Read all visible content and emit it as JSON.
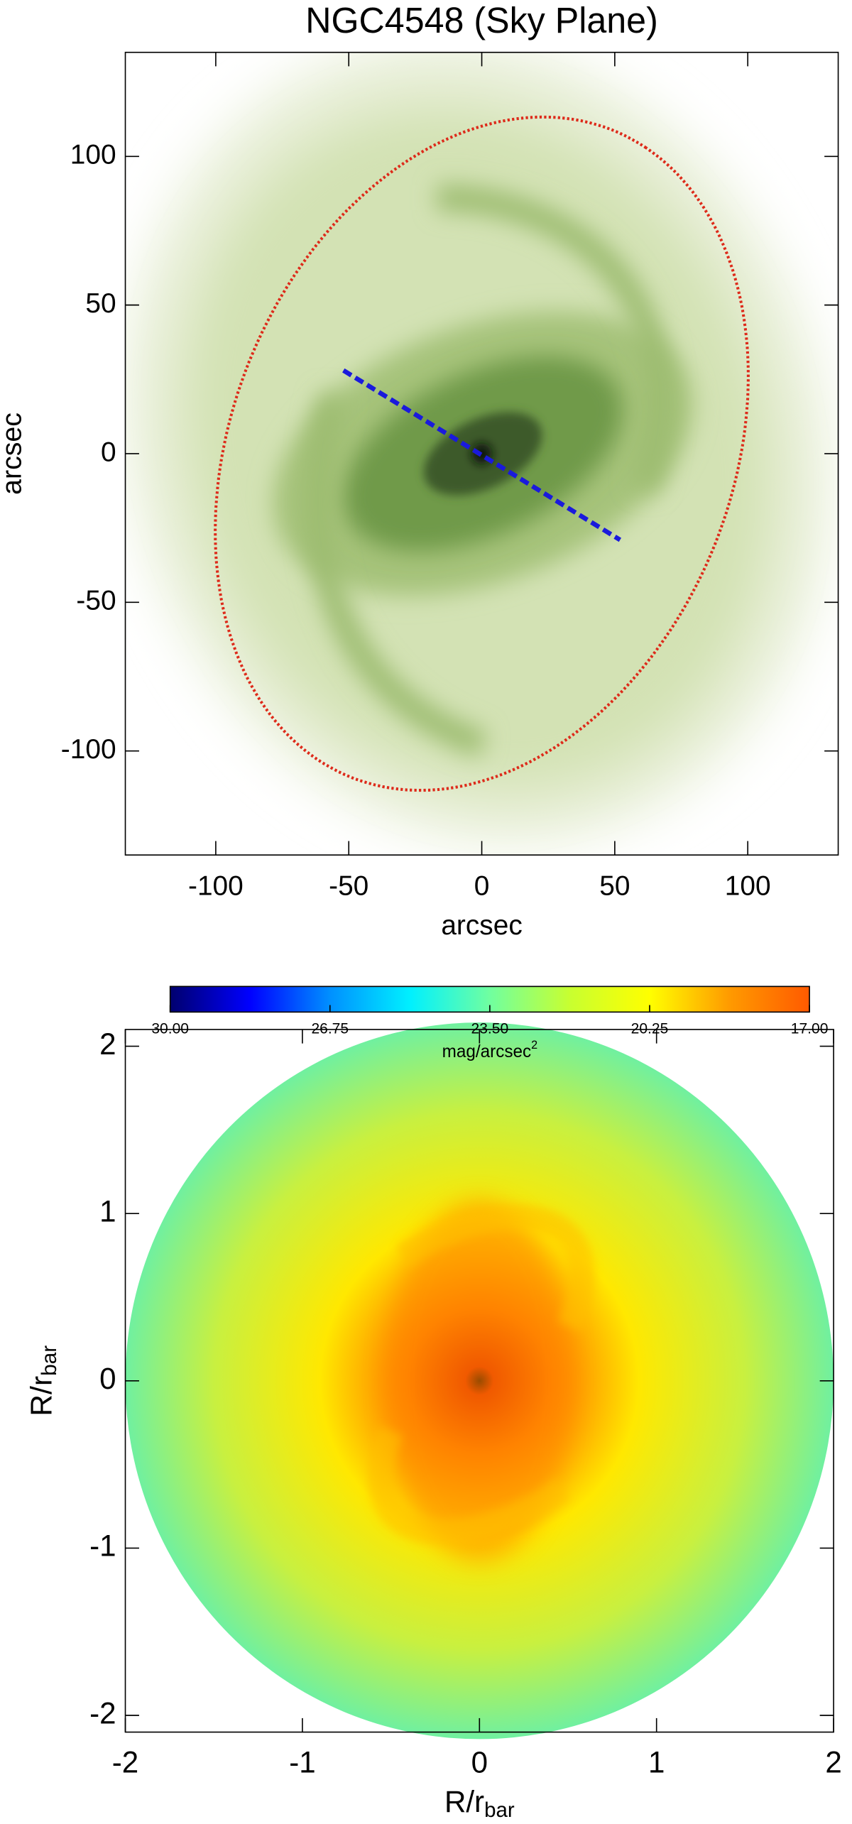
{
  "chart_data": [
    {
      "type": "image",
      "title": "NGC4548 (Sky Plane)",
      "xlabel": "arcsec",
      "ylabel": "arcsec",
      "xlim": [
        -134,
        134
      ],
      "ylim": [
        -135,
        135
      ],
      "xticks": [
        -100,
        -50,
        0,
        50,
        100
      ],
      "yticks": [
        -100,
        -50,
        0,
        50,
        100
      ],
      "ellipse": {
        "a": 120,
        "b": 92,
        "angle": 59,
        "color": "#dd2a1a"
      },
      "bar_line": {
        "x": [
          -52,
          52
        ],
        "y": [
          28,
          -29
        ],
        "color": "#1a1adc"
      }
    },
    {
      "type": "disk",
      "xlabel": "R/r",
      "xlabel_sub": "bar",
      "ylabel": "R/r",
      "ylabel_sub": "bar",
      "xlim": [
        -2,
        2
      ],
      "ylim": [
        -2.1,
        2.1
      ],
      "xticks": [
        -2,
        -1,
        0,
        1,
        2
      ],
      "yticks": [
        -2,
        -1,
        0,
        1,
        2
      ],
      "colorbar": {
        "label": "mag/arcsec",
        "label_sup": "2",
        "lim": [
          30,
          17
        ],
        "ticks": [
          {
            "value": 30,
            "label": "30.00"
          },
          {
            "value": 26.75,
            "label": "26.75"
          },
          {
            "value": 23.5,
            "label": "23.50"
          },
          {
            "value": 20.25,
            "label": "20.25"
          },
          {
            "value": 17,
            "label": "17.00"
          }
        ],
        "colormap": [
          "#00006e",
          "#0000ff",
          "#0090ff",
          "#00f0ff",
          "#70ffa0",
          "#c8ff30",
          "#ffff00",
          "#ff9a00",
          "#ff5a00"
        ]
      }
    }
  ]
}
